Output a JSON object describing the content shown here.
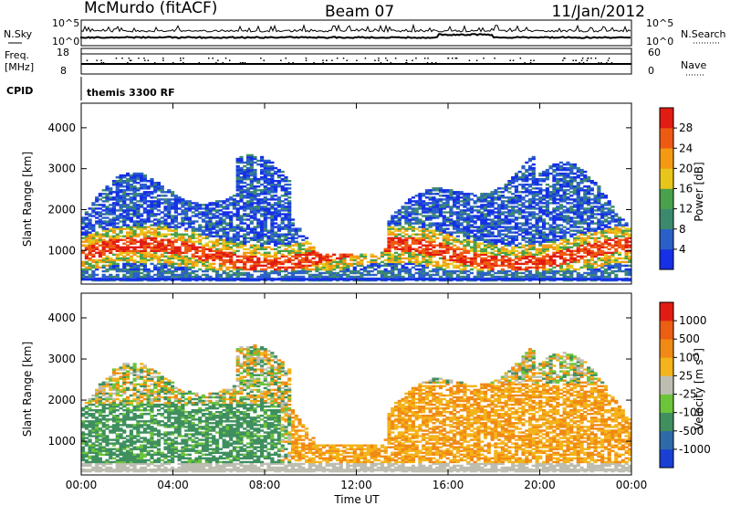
{
  "header": {
    "station": "McMurdo (fitACF)",
    "beam": "Beam 07",
    "date": "11/Jan/2012"
  },
  "noise_panel": {
    "left_label": "N.Sky",
    "right_label": "N.Search",
    "left_ticks": [
      "10^5",
      "10^0"
    ],
    "right_ticks": [
      "10^5",
      "10^0"
    ]
  },
  "freq_panel": {
    "left_label_top": "Freq.",
    "left_label_bottom": "[MHz]",
    "right_label": "Nave",
    "left_ticks": [
      "18",
      "8"
    ],
    "right_ticks": [
      "60",
      "0"
    ]
  },
  "cpid": {
    "label": "CPID",
    "value": "themis 3300 RF"
  },
  "chart_data": [
    {
      "type": "heatmap",
      "ylabel": "Slant Range [km]",
      "ylim": [
        180,
        4600
      ],
      "y_ticks": [
        1000,
        2000,
        3000,
        4000
      ],
      "xlabel": "",
      "x_ticks": [
        "00:00",
        "04:00",
        "08:00",
        "12:00",
        "16:00",
        "20:00",
        "00:00"
      ],
      "colorbar": {
        "label": "Power [dB]",
        "ticks": [
          "4",
          "8",
          "12",
          "16",
          "20",
          "24",
          "28"
        ],
        "colors": [
          "#1530e6",
          "#2a60c8",
          "#3c8a6e",
          "#49a14b",
          "#e8c51a",
          "#f49a12",
          "#ef5a12",
          "#e21c12"
        ]
      }
    },
    {
      "type": "heatmap",
      "ylabel": "Slant Range [km]",
      "ylim": [
        180,
        4600
      ],
      "y_ticks": [
        1000,
        2000,
        3000,
        4000
      ],
      "xlabel": "Time UT",
      "x_ticks": [
        "00:00",
        "04:00",
        "08:00",
        "12:00",
        "16:00",
        "20:00",
        "00:00"
      ],
      "colorbar": {
        "label": "Velocity [m s",
        "label_sup": "-1",
        "label_end": "]",
        "ticks": [
          "1000",
          "500",
          "100",
          "25",
          "-25",
          "-100",
          "-500",
          "-1000"
        ],
        "colors": [
          "#1a3fd4",
          "#2f6aa8",
          "#3f8f5f",
          "#6cc43a",
          "#bdbdb1",
          "#f4b31a",
          "#f08a14",
          "#ec5e12",
          "#e21c12"
        ]
      }
    }
  ]
}
